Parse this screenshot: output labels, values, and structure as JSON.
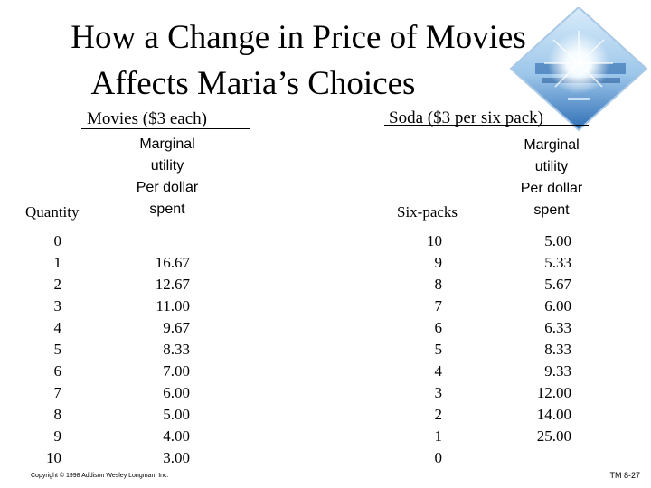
{
  "title": {
    "line1": "How a Change in Price of Movies",
    "line2": "Affects Maria’s Choices"
  },
  "movies": {
    "header": "Movies ($3 each)",
    "quantity_label": "Quantity",
    "mu_label": [
      "Marginal",
      "utility",
      "Per dollar",
      "spent"
    ],
    "quantities": [
      "0",
      "1",
      "2",
      "3",
      "4",
      "5",
      "6",
      "7",
      "8",
      "9",
      "10"
    ],
    "mu_per_dollar": [
      "",
      "16.67",
      "12.67",
      "11.00",
      "9.67",
      "8.33",
      "7.00",
      "6.00",
      "5.00",
      "4.00",
      "3.00"
    ]
  },
  "soda": {
    "header": "Soda ($3 per six pack)",
    "quantity_label": "Six-packs",
    "mu_label": [
      "Marginal",
      "utility",
      "Per dollar",
      "spent"
    ],
    "quantities": [
      "10",
      "9",
      "8",
      "7",
      "6",
      "5",
      "4",
      "3",
      "2",
      "1",
      "0"
    ],
    "mu_per_dollar": [
      "5.00",
      "5.33",
      "5.67",
      "6.00",
      "6.33",
      "8.33",
      "9.33",
      "12.00",
      "14.00",
      "25.00",
      ""
    ]
  },
  "footer": {
    "copyright": "Copyright © 1998 Addison Wesley Longman, Inc.",
    "slide_id": "TM 8-27"
  },
  "colors": {
    "deco_blue": "#4f88c6",
    "deco_light": "#cfe4f5"
  },
  "icons": {
    "corner": "sunburst-water-graphic"
  }
}
